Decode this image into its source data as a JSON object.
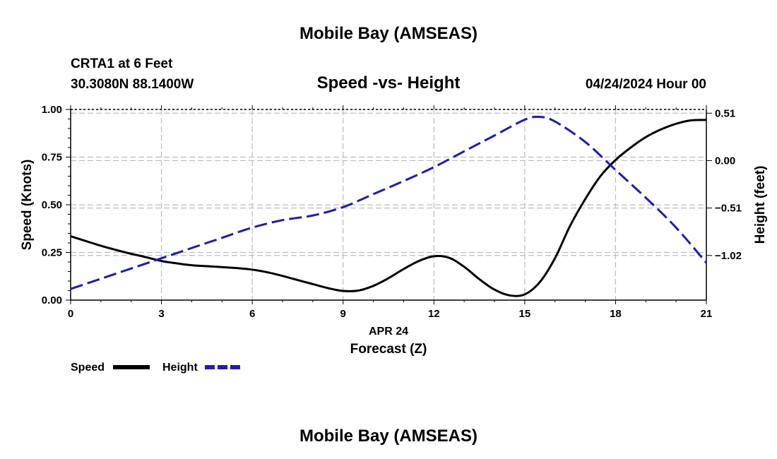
{
  "header": {
    "title": "Mobile Bay (AMSEAS)",
    "station": "CRTA1 at 6 Feet",
    "location": "30.3080N  88.1400W",
    "subtitle": "Speed -vs- Height",
    "datetime": "04/24/2024 Hour 00"
  },
  "footer": {
    "title": "Mobile Bay (AMSEAS)"
  },
  "colors": {
    "speed": "#000000",
    "height": "#1a1acc",
    "grid": "#bdbdbd"
  },
  "chart_data": {
    "type": "line",
    "title": "Speed -vs- Height",
    "xlabel": "Forecast (Z)",
    "xlabel_date": "APR 24",
    "ylabel_left": "Speed (Knots)",
    "ylabel_right": "Height (feet)",
    "xlim": [
      0,
      21
    ],
    "ylim_left": [
      0,
      1.0
    ],
    "ylim_right": [
      -1.5,
      0.55
    ],
    "x_ticks": [
      0,
      3,
      6,
      9,
      12,
      15,
      18,
      21
    ],
    "x_tick_labels": [
      "0",
      "3",
      "6",
      "9",
      "12",
      "15",
      "18",
      "21"
    ],
    "y_left_ticks": [
      0,
      0.25,
      0.5,
      0.75,
      1.0
    ],
    "y_left_tick_labels": [
      "0.00",
      "0.25",
      "0.50",
      "0.75",
      "1.00"
    ],
    "y_right_ticks": [
      0.51,
      0.0,
      -0.51,
      -1.02
    ],
    "y_right_tick_labels": [
      "0.51",
      "0.00",
      "−0.51",
      "−1.02"
    ],
    "grid": true,
    "legend": {
      "position": "bottom-left",
      "entries": [
        "Speed",
        "Height"
      ]
    },
    "series": [
      {
        "name": "Speed",
        "axis": "left",
        "style": "solid",
        "x": [
          0,
          0.5,
          1,
          1.5,
          2,
          2.5,
          3,
          3.5,
          4,
          4.5,
          5,
          5.5,
          6,
          6.5,
          7,
          7.5,
          8,
          8.5,
          9,
          9.5,
          10,
          10.5,
          11,
          11.5,
          12,
          12.5,
          13,
          13.5,
          14,
          14.5,
          15,
          15.5,
          16,
          16.5,
          17,
          17.5,
          18,
          18.5,
          19,
          19.5,
          20,
          20.5,
          21
        ],
        "values": [
          0.335,
          0.31,
          0.285,
          0.263,
          0.243,
          0.225,
          0.205,
          0.193,
          0.183,
          0.178,
          0.173,
          0.168,
          0.16,
          0.146,
          0.127,
          0.105,
          0.084,
          0.063,
          0.048,
          0.05,
          0.075,
          0.115,
          0.163,
          0.205,
          0.23,
          0.222,
          0.175,
          0.11,
          0.055,
          0.025,
          0.03,
          0.095,
          0.22,
          0.39,
          0.53,
          0.65,
          0.735,
          0.8,
          0.855,
          0.895,
          0.925,
          0.943,
          0.945
        ]
      },
      {
        "name": "Height",
        "axis": "right",
        "style": "dashed",
        "x": [
          0,
          1,
          2,
          3,
          4,
          5,
          6,
          7,
          8,
          9,
          10,
          11,
          12,
          13,
          14,
          15,
          15.5,
          16,
          17,
          18,
          19,
          20,
          21
        ],
        "values": [
          -1.38,
          -1.27,
          -1.16,
          -1.05,
          -0.94,
          -0.83,
          -0.72,
          -0.64,
          -0.59,
          -0.5,
          -0.36,
          -0.22,
          -0.07,
          0.1,
          0.27,
          0.44,
          0.47,
          0.42,
          0.2,
          -0.1,
          -0.4,
          -0.72,
          -1.1
        ]
      }
    ]
  }
}
